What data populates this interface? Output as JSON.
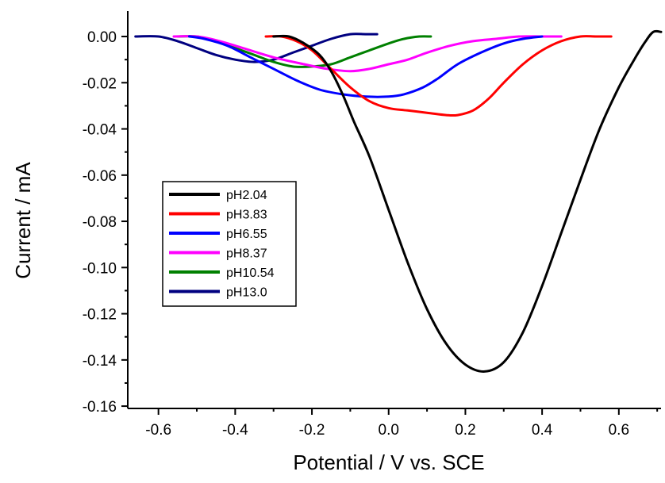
{
  "chart_data": {
    "type": "line",
    "title": "",
    "xlabel": "Potential / V vs. SCE",
    "ylabel": "Current / mA",
    "xlim": [
      -0.68,
      0.71
    ],
    "ylim": [
      -0.161,
      0.011
    ],
    "xticks": [
      -0.6,
      -0.4,
      -0.2,
      0.0,
      0.2,
      0.4,
      0.6
    ],
    "xtick_labels": [
      "-0.6",
      "-0.4",
      "-0.2",
      "0.0",
      "0.2",
      "0.4",
      "0.6"
    ],
    "yticks": [
      0.0,
      -0.02,
      -0.04,
      -0.06,
      -0.08,
      -0.1,
      -0.12,
      -0.14,
      -0.16
    ],
    "ytick_labels": [
      "0.00",
      "-0.02",
      "-0.04",
      "-0.06",
      "-0.08",
      "-0.10",
      "-0.12",
      "-0.14",
      "-0.16"
    ],
    "grid": false,
    "legend_position": "left-middle",
    "series": [
      {
        "name": "pH2.04",
        "color": "#000000",
        "points": [
          [
            -0.3,
            0.0
          ],
          [
            -0.26,
            0.0
          ],
          [
            -0.22,
            -0.003
          ],
          [
            -0.18,
            -0.008
          ],
          [
            -0.15,
            -0.015
          ],
          [
            -0.12,
            -0.025
          ],
          [
            -0.09,
            -0.037
          ],
          [
            -0.05,
            -0.052
          ],
          [
            0.0,
            -0.075
          ],
          [
            0.05,
            -0.098
          ],
          [
            0.1,
            -0.118
          ],
          [
            0.15,
            -0.133
          ],
          [
            0.2,
            -0.142
          ],
          [
            0.25,
            -0.145
          ],
          [
            0.3,
            -0.141
          ],
          [
            0.35,
            -0.128
          ],
          [
            0.4,
            -0.108
          ],
          [
            0.45,
            -0.085
          ],
          [
            0.5,
            -0.062
          ],
          [
            0.55,
            -0.04
          ],
          [
            0.6,
            -0.022
          ],
          [
            0.64,
            -0.01
          ],
          [
            0.67,
            -0.002
          ],
          [
            0.69,
            0.002
          ],
          [
            0.71,
            0.002
          ]
        ]
      },
      {
        "name": "pH3.83",
        "color": "#ff0000",
        "points": [
          [
            -0.32,
            0.0
          ],
          [
            -0.28,
            0.0
          ],
          [
            -0.24,
            -0.002
          ],
          [
            -0.2,
            -0.006
          ],
          [
            -0.15,
            -0.014
          ],
          [
            -0.1,
            -0.022
          ],
          [
            -0.05,
            -0.028
          ],
          [
            0.0,
            -0.031
          ],
          [
            0.05,
            -0.032
          ],
          [
            0.1,
            -0.033
          ],
          [
            0.15,
            -0.034
          ],
          [
            0.18,
            -0.034
          ],
          [
            0.22,
            -0.032
          ],
          [
            0.26,
            -0.027
          ],
          [
            0.3,
            -0.02
          ],
          [
            0.35,
            -0.012
          ],
          [
            0.4,
            -0.006
          ],
          [
            0.45,
            -0.002
          ],
          [
            0.5,
            0.0
          ],
          [
            0.54,
            0.0
          ],
          [
            0.58,
            0.0
          ]
        ]
      },
      {
        "name": "pH6.55",
        "color": "#0000ff",
        "points": [
          [
            -0.52,
            0.0
          ],
          [
            -0.48,
            -0.001
          ],
          [
            -0.42,
            -0.004
          ],
          [
            -0.36,
            -0.009
          ],
          [
            -0.3,
            -0.014
          ],
          [
            -0.24,
            -0.019
          ],
          [
            -0.18,
            -0.023
          ],
          [
            -0.12,
            -0.025
          ],
          [
            -0.06,
            -0.026
          ],
          [
            0.0,
            -0.026
          ],
          [
            0.04,
            -0.025
          ],
          [
            0.09,
            -0.022
          ],
          [
            0.13,
            -0.018
          ],
          [
            0.18,
            -0.012
          ],
          [
            0.24,
            -0.007
          ],
          [
            0.3,
            -0.003
          ],
          [
            0.35,
            -0.001
          ],
          [
            0.4,
            0.0
          ]
        ]
      },
      {
        "name": "pH8.37",
        "color": "#ff00ff",
        "points": [
          [
            -0.56,
            0.0
          ],
          [
            -0.5,
            0.0
          ],
          [
            -0.44,
            -0.002
          ],
          [
            -0.38,
            -0.005
          ],
          [
            -0.3,
            -0.009
          ],
          [
            -0.22,
            -0.012
          ],
          [
            -0.16,
            -0.014
          ],
          [
            -0.1,
            -0.015
          ],
          [
            -0.05,
            -0.014
          ],
          [
            0.0,
            -0.012
          ],
          [
            0.05,
            -0.01
          ],
          [
            0.1,
            -0.007
          ],
          [
            0.16,
            -0.004
          ],
          [
            0.22,
            -0.002
          ],
          [
            0.28,
            -0.001
          ],
          [
            0.34,
            0.0
          ],
          [
            0.4,
            0.0
          ],
          [
            0.45,
            0.0
          ]
        ]
      },
      {
        "name": "pH10.54",
        "color": "#008000",
        "points": [
          [
            -0.55,
            0.0
          ],
          [
            -0.5,
            0.0
          ],
          [
            -0.45,
            -0.002
          ],
          [
            -0.4,
            -0.005
          ],
          [
            -0.35,
            -0.008
          ],
          [
            -0.3,
            -0.011
          ],
          [
            -0.25,
            -0.013
          ],
          [
            -0.2,
            -0.013
          ],
          [
            -0.15,
            -0.012
          ],
          [
            -0.1,
            -0.009
          ],
          [
            -0.05,
            -0.006
          ],
          [
            0.0,
            -0.003
          ],
          [
            0.04,
            -0.001
          ],
          [
            0.08,
            0.0
          ],
          [
            0.11,
            0.0
          ]
        ]
      },
      {
        "name": "pH13.0",
        "color": "#000080",
        "points": [
          [
            -0.66,
            0.0
          ],
          [
            -0.6,
            0.0
          ],
          [
            -0.55,
            -0.002
          ],
          [
            -0.5,
            -0.005
          ],
          [
            -0.45,
            -0.008
          ],
          [
            -0.4,
            -0.01
          ],
          [
            -0.35,
            -0.011
          ],
          [
            -0.3,
            -0.01
          ],
          [
            -0.25,
            -0.007
          ],
          [
            -0.2,
            -0.004
          ],
          [
            -0.15,
            -0.001
          ],
          [
            -0.1,
            0.001
          ],
          [
            -0.06,
            0.001
          ],
          [
            -0.03,
            0.001
          ]
        ]
      }
    ]
  }
}
